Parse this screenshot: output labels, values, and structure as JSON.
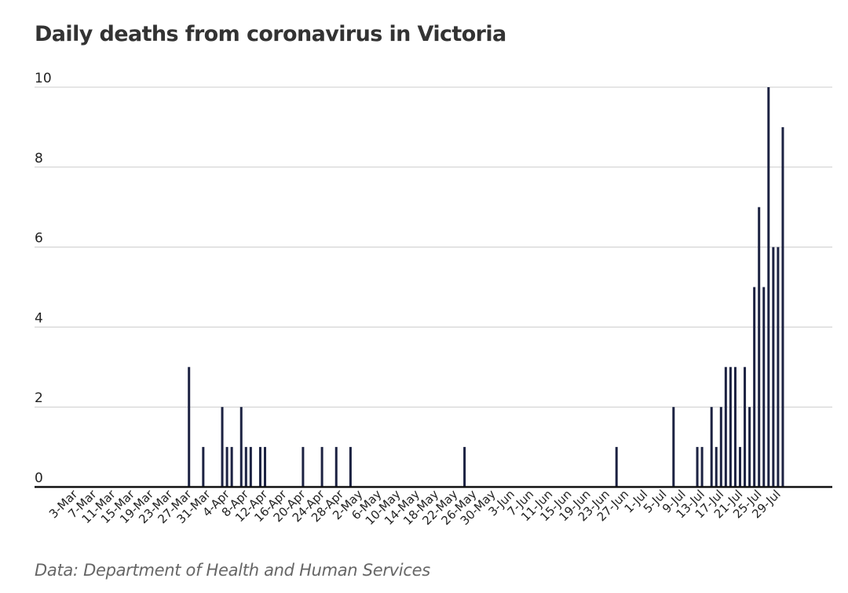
{
  "chart_data": {
    "type": "bar",
    "title": "Daily deaths from coronavirus in Victoria",
    "source": "Data: Department of Health and Human Services",
    "xlabel": "",
    "ylabel": "",
    "ylim": [
      0,
      10
    ],
    "yticks": [
      0,
      2,
      4,
      6,
      8,
      10
    ],
    "grid": true,
    "start_date": "3-Mar",
    "num_days": 150,
    "tick_labels": [
      "3-Mar",
      "7-Mar",
      "11-Mar",
      "15-Mar",
      "19-Mar",
      "23-Mar",
      "27-Mar",
      "31-Mar",
      "4-Apr",
      "8-Apr",
      "12-Apr",
      "16-Apr",
      "20-Apr",
      "24-Apr",
      "28-Apr",
      "2-May",
      "6-May",
      "10-May",
      "14-May",
      "18-May",
      "22-May",
      "26-May",
      "30-May",
      "3-Jun",
      "7-Jun",
      "11-Jun",
      "15-Jun",
      "19-Jun",
      "23-Jun",
      "27-Jun",
      "1-Jul",
      "5-Jul",
      "9-Jul",
      "13-Jul",
      "17-Jul",
      "21-Jul",
      "25-Jul",
      "29-Jul"
    ],
    "series": [
      {
        "name": "Daily deaths",
        "color": "#1c2242",
        "points": [
          {
            "date": "27-Mar",
            "value": 3
          },
          {
            "date": "30-Mar",
            "value": 1
          },
          {
            "date": "3-Apr",
            "value": 2
          },
          {
            "date": "4-Apr",
            "value": 1
          },
          {
            "date": "5-Apr",
            "value": 1
          },
          {
            "date": "7-Apr",
            "value": 2
          },
          {
            "date": "8-Apr",
            "value": 1
          },
          {
            "date": "9-Apr",
            "value": 1
          },
          {
            "date": "11-Apr",
            "value": 1
          },
          {
            "date": "12-Apr",
            "value": 1
          },
          {
            "date": "20-Apr",
            "value": 1
          },
          {
            "date": "24-Apr",
            "value": 1
          },
          {
            "date": "27-Apr",
            "value": 1
          },
          {
            "date": "30-Apr",
            "value": 1
          },
          {
            "date": "24-May",
            "value": 1
          },
          {
            "date": "25-Jun",
            "value": 1
          },
          {
            "date": "7-Jul",
            "value": 2
          },
          {
            "date": "12-Jul",
            "value": 1
          },
          {
            "date": "13-Jul",
            "value": 1
          },
          {
            "date": "15-Jul",
            "value": 2
          },
          {
            "date": "16-Jul",
            "value": 1
          },
          {
            "date": "17-Jul",
            "value": 2
          },
          {
            "date": "18-Jul",
            "value": 3
          },
          {
            "date": "19-Jul",
            "value": 3
          },
          {
            "date": "20-Jul",
            "value": 3
          },
          {
            "date": "21-Jul",
            "value": 1
          },
          {
            "date": "22-Jul",
            "value": 3
          },
          {
            "date": "23-Jul",
            "value": 2
          },
          {
            "date": "24-Jul",
            "value": 5
          },
          {
            "date": "25-Jul",
            "value": 7
          },
          {
            "date": "26-Jul",
            "value": 5
          },
          {
            "date": "27-Jul",
            "value": 10
          },
          {
            "date": "28-Jul",
            "value": 6
          },
          {
            "date": "29-Jul",
            "value": 6
          },
          {
            "date": "30-Jul",
            "value": 9
          }
        ]
      }
    ]
  }
}
